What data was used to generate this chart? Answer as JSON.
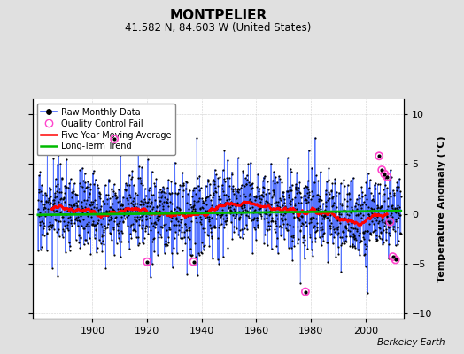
{
  "title": "MONTPELIER",
  "subtitle": "41.582 N, 84.603 W (United States)",
  "ylabel": "Temperature Anomaly (°C)",
  "attribution": "Berkeley Earth",
  "year_start": 1880,
  "year_end": 2013,
  "ylim": [
    -10.5,
    11.5
  ],
  "yticks": [
    -10,
    -5,
    0,
    5,
    10
  ],
  "xlim": [
    1878,
    2014
  ],
  "xticks": [
    1900,
    1920,
    1940,
    1960,
    1980,
    2000
  ],
  "background_color": "#e0e0e0",
  "plot_bg_color": "#ffffff",
  "raw_line_color": "#4466ff",
  "raw_dot_color": "#000000",
  "moving_avg_color": "#ff0000",
  "trend_color": "#00bb00",
  "qc_fail_color": "#ff44cc",
  "legend_raw": "Raw Monthly Data",
  "legend_qc": "Quality Control Fail",
  "legend_ma": "Five Year Moving Average",
  "legend_trend": "Long-Term Trend",
  "seed": 17,
  "num_months": 1596,
  "noise_std": 2.0,
  "qc_positions": [
    [
      1908,
      7.5
    ],
    [
      1920,
      -4.8
    ],
    [
      1937,
      -4.8
    ],
    [
      1978,
      -7.8
    ],
    [
      2005,
      5.8
    ],
    [
      2006,
      4.4
    ],
    [
      2007,
      4.0
    ],
    [
      2008,
      3.7
    ],
    [
      2009,
      -0.8
    ],
    [
      2010,
      -4.3
    ],
    [
      2011,
      -4.6
    ]
  ]
}
